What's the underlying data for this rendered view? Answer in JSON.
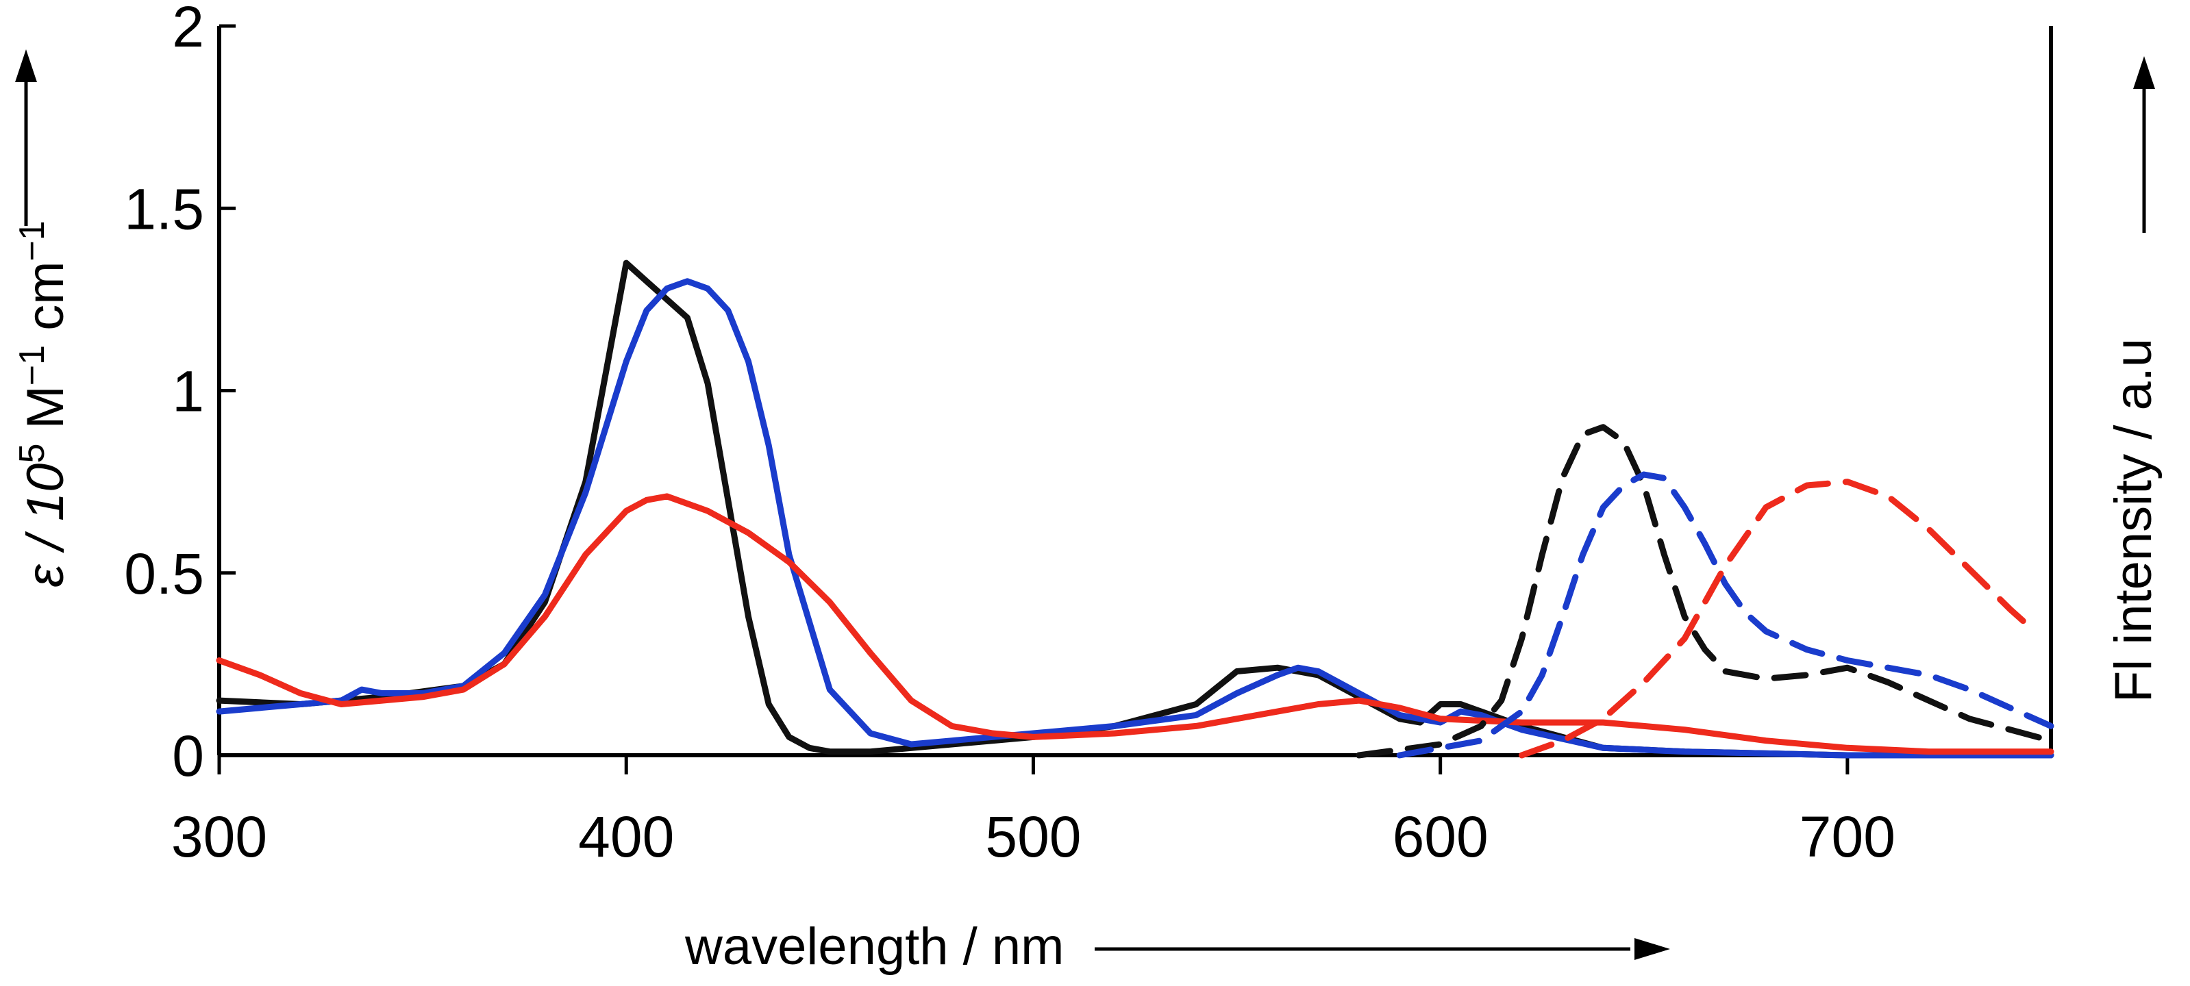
{
  "chart_data": {
    "type": "line",
    "title": "",
    "xlabel": "wavelength / nm",
    "ylabel_left": {
      "pre": "ε / 10",
      "sup1": "5",
      "mid": " M",
      "sup2": "−1",
      "mid2": " cm",
      "sup3": "−1"
    },
    "ylabel_right": "Fl intensity / a.u",
    "xlim": [
      300,
      750
    ],
    "ylim": [
      0,
      2
    ],
    "x_ticks": [
      300,
      400,
      500,
      600,
      700
    ],
    "x_tick_labels": [
      "300",
      "400",
      "500",
      "600",
      "700"
    ],
    "y_ticks": [
      0,
      0.5,
      1,
      1.5,
      2
    ],
    "y_tick_labels": [
      "0",
      "0.5",
      "1",
      "1.5",
      "2"
    ],
    "grid": false,
    "legend": "none",
    "series": [
      {
        "name": "absorption-black",
        "color": "#111111",
        "dash": "solid",
        "x": [
          300,
          320,
          340,
          360,
          370,
          380,
          390,
          395,
          400,
          405,
          410,
          415,
          420,
          425,
          430,
          435,
          440,
          445,
          450,
          460,
          480,
          500,
          520,
          540,
          550,
          560,
          570,
          580,
          590,
          595,
          600,
          605,
          610,
          620,
          640,
          660,
          700,
          750
        ],
        "y": [
          0.15,
          0.14,
          0.16,
          0.19,
          0.25,
          0.42,
          0.75,
          1.05,
          1.35,
          1.3,
          1.25,
          1.2,
          1.02,
          0.7,
          0.38,
          0.14,
          0.05,
          0.02,
          0.01,
          0.01,
          0.03,
          0.05,
          0.08,
          0.14,
          0.23,
          0.24,
          0.22,
          0.16,
          0.1,
          0.09,
          0.14,
          0.14,
          0.12,
          0.08,
          0.02,
          0.01,
          0.0,
          0.0
        ]
      },
      {
        "name": "absorption-blue",
        "color": "#1a3ccc",
        "dash": "solid",
        "x": [
          300,
          320,
          330,
          335,
          340,
          350,
          360,
          370,
          380,
          390,
          400,
          405,
          410,
          415,
          420,
          425,
          430,
          435,
          440,
          450,
          460,
          470,
          480,
          500,
          520,
          540,
          550,
          560,
          565,
          570,
          580,
          590,
          600,
          605,
          610,
          620,
          640,
          660,
          700,
          750
        ],
        "y": [
          0.12,
          0.14,
          0.15,
          0.18,
          0.17,
          0.17,
          0.19,
          0.28,
          0.44,
          0.72,
          1.08,
          1.22,
          1.28,
          1.3,
          1.28,
          1.22,
          1.08,
          0.85,
          0.55,
          0.18,
          0.06,
          0.03,
          0.04,
          0.06,
          0.08,
          0.11,
          0.17,
          0.22,
          0.24,
          0.23,
          0.17,
          0.11,
          0.09,
          0.12,
          0.11,
          0.07,
          0.02,
          0.01,
          0.0,
          0.0
        ]
      },
      {
        "name": "absorption-red",
        "color": "#ee2a1c",
        "dash": "solid",
        "x": [
          300,
          310,
          320,
          330,
          340,
          350,
          360,
          370,
          380,
          390,
          400,
          405,
          410,
          420,
          430,
          440,
          450,
          460,
          470,
          480,
          490,
          500,
          520,
          540,
          560,
          570,
          580,
          590,
          600,
          620,
          640,
          660,
          680,
          700,
          720,
          750
        ],
        "y": [
          0.26,
          0.22,
          0.17,
          0.14,
          0.15,
          0.16,
          0.18,
          0.25,
          0.38,
          0.55,
          0.67,
          0.7,
          0.71,
          0.67,
          0.61,
          0.53,
          0.42,
          0.28,
          0.15,
          0.08,
          0.06,
          0.05,
          0.06,
          0.08,
          0.12,
          0.14,
          0.15,
          0.13,
          0.1,
          0.09,
          0.09,
          0.07,
          0.04,
          0.02,
          0.01,
          0.01
        ]
      },
      {
        "name": "emission-black",
        "color": "#111111",
        "dash": "dashed",
        "x": [
          580,
          600,
          610,
          615,
          620,
          625,
          630,
          635,
          640,
          645,
          650,
          655,
          660,
          665,
          670,
          680,
          690,
          700,
          710,
          720,
          730,
          740,
          750
        ],
        "y": [
          0.0,
          0.03,
          0.08,
          0.15,
          0.32,
          0.55,
          0.76,
          0.88,
          0.9,
          0.86,
          0.74,
          0.55,
          0.38,
          0.29,
          0.23,
          0.21,
          0.22,
          0.24,
          0.2,
          0.15,
          0.1,
          0.07,
          0.04
        ]
      },
      {
        "name": "emission-blue",
        "color": "#1a3ccc",
        "dash": "dashed",
        "x": [
          590,
          610,
          620,
          625,
          630,
          635,
          640,
          645,
          650,
          655,
          660,
          665,
          670,
          675,
          680,
          690,
          700,
          710,
          720,
          730,
          740,
          750
        ],
        "y": [
          0.0,
          0.04,
          0.12,
          0.22,
          0.38,
          0.55,
          0.68,
          0.74,
          0.77,
          0.76,
          0.68,
          0.58,
          0.47,
          0.39,
          0.34,
          0.29,
          0.26,
          0.24,
          0.22,
          0.18,
          0.13,
          0.08
        ]
      },
      {
        "name": "emission-red",
        "color": "#ee2a1c",
        "dash": "dashed",
        "x": [
          620,
          630,
          640,
          650,
          660,
          665,
          670,
          675,
          680,
          690,
          700,
          710,
          720,
          730,
          740,
          745
        ],
        "y": [
          0.0,
          0.04,
          0.1,
          0.2,
          0.32,
          0.42,
          0.52,
          0.6,
          0.68,
          0.74,
          0.75,
          0.71,
          0.62,
          0.51,
          0.4,
          0.35
        ]
      }
    ]
  }
}
